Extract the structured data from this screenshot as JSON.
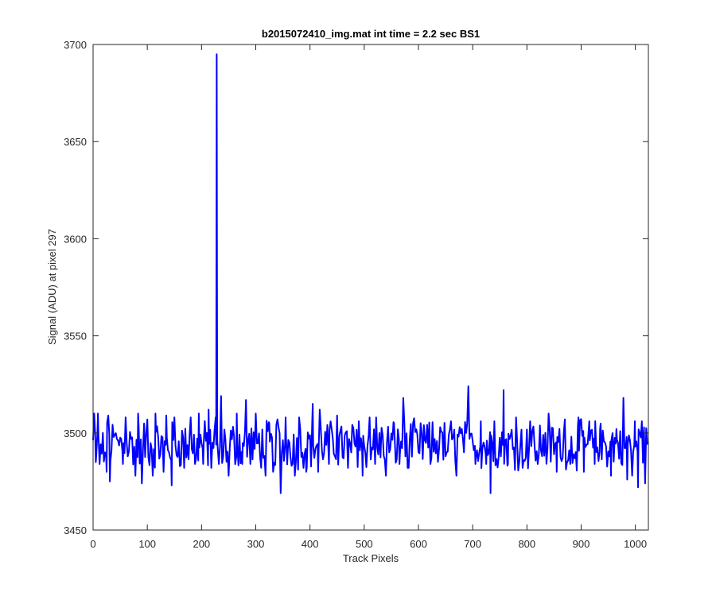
{
  "chart_data": {
    "type": "line",
    "title": "b2015072410_img.mat int time = 2.2 sec   BS1",
    "xlabel": "Track Pixels",
    "ylabel": "Signal (ADU) at pixel 297",
    "xlim": [
      0,
      1024
    ],
    "ylim": [
      3450,
      3700
    ],
    "xticks": [
      0,
      100,
      200,
      300,
      400,
      500,
      600,
      700,
      800,
      900,
      1000
    ],
    "yticks": [
      3450,
      3500,
      3550,
      3600,
      3650,
      3700
    ],
    "grid": false,
    "series": [
      {
        "color": "#0000ff",
        "baseline": 3494,
        "spike": {
          "x": 228,
          "y": 3695
        },
        "noise_points": [
          [
            2,
            3510
          ],
          [
            5,
            3485
          ],
          [
            9,
            3510
          ],
          [
            12,
            3484
          ],
          [
            18,
            3500
          ],
          [
            22,
            3490
          ],
          [
            25,
            3480
          ],
          [
            28,
            3509
          ],
          [
            31,
            3475
          ],
          [
            40,
            3499
          ],
          [
            55,
            3484
          ],
          [
            60,
            3508
          ],
          [
            78,
            3478
          ],
          [
            83,
            3510
          ],
          [
            90,
            3474
          ],
          [
            100,
            3507
          ],
          [
            110,
            3478
          ],
          [
            115,
            3510
          ],
          [
            130,
            3480
          ],
          [
            135,
            3509
          ],
          [
            140,
            3490
          ],
          [
            145,
            3473
          ],
          [
            150,
            3508
          ],
          [
            168,
            3482
          ],
          [
            180,
            3508
          ],
          [
            188,
            3484
          ],
          [
            195,
            3510
          ],
          [
            203,
            3484
          ],
          [
            210,
            3500
          ],
          [
            213,
            3512
          ],
          [
            218,
            3482
          ],
          [
            220,
            3495
          ],
          [
            226,
            3508
          ],
          [
            232,
            3484
          ],
          [
            236,
            3519
          ],
          [
            240,
            3488
          ],
          [
            250,
            3478
          ],
          [
            265,
            3510
          ],
          [
            275,
            3484
          ],
          [
            282,
            3517
          ],
          [
            290,
            3484
          ],
          [
            300,
            3510
          ],
          [
            318,
            3478
          ],
          [
            325,
            3505
          ],
          [
            332,
            3480
          ],
          [
            340,
            3507
          ],
          [
            346,
            3469
          ],
          [
            355,
            3508
          ],
          [
            372,
            3478
          ],
          [
            380,
            3508
          ],
          [
            393,
            3480
          ],
          [
            405,
            3515
          ],
          [
            415,
            3480
          ],
          [
            418,
            3512
          ],
          [
            435,
            3484
          ],
          [
            450,
            3509
          ],
          [
            470,
            3482
          ],
          [
            490,
            3506
          ],
          [
            497,
            3478
          ],
          [
            510,
            3508
          ],
          [
            520,
            3484
          ],
          [
            522,
            3508
          ],
          [
            540,
            3478
          ],
          [
            555,
            3505
          ],
          [
            565,
            3484
          ],
          [
            572,
            3518
          ],
          [
            580,
            3482
          ],
          [
            590,
            3505
          ],
          [
            600,
            3490
          ],
          [
            610,
            3504
          ],
          [
            622,
            3484
          ],
          [
            640,
            3503
          ],
          [
            650,
            3488
          ],
          [
            660,
            3506
          ],
          [
            670,
            3478
          ],
          [
            676,
            3503
          ],
          [
            684,
            3490
          ],
          [
            692,
            3524
          ],
          [
            700,
            3496
          ],
          [
            705,
            3484
          ],
          [
            715,
            3506
          ],
          [
            725,
            3484
          ],
          [
            733,
            3469
          ],
          [
            740,
            3506
          ],
          [
            748,
            3488
          ],
          [
            757,
            3522
          ],
          [
            765,
            3484
          ],
          [
            780,
            3508
          ],
          [
            792,
            3482
          ],
          [
            806,
            3506
          ],
          [
            820,
            3484
          ],
          [
            830,
            3499
          ],
          [
            840,
            3510
          ],
          [
            855,
            3480
          ],
          [
            870,
            3507
          ],
          [
            880,
            3484
          ],
          [
            895,
            3508
          ],
          [
            905,
            3480
          ],
          [
            915,
            3506
          ],
          [
            925,
            3484
          ],
          [
            935,
            3502
          ],
          [
            955,
            3478
          ],
          [
            965,
            3502
          ],
          [
            978,
            3518
          ],
          [
            985,
            3476
          ],
          [
            994,
            3478
          ],
          [
            999,
            3506
          ],
          [
            1005,
            3472
          ],
          [
            1012,
            3506
          ],
          [
            1018,
            3474
          ],
          [
            1022,
            3494
          ]
        ]
      }
    ]
  }
}
